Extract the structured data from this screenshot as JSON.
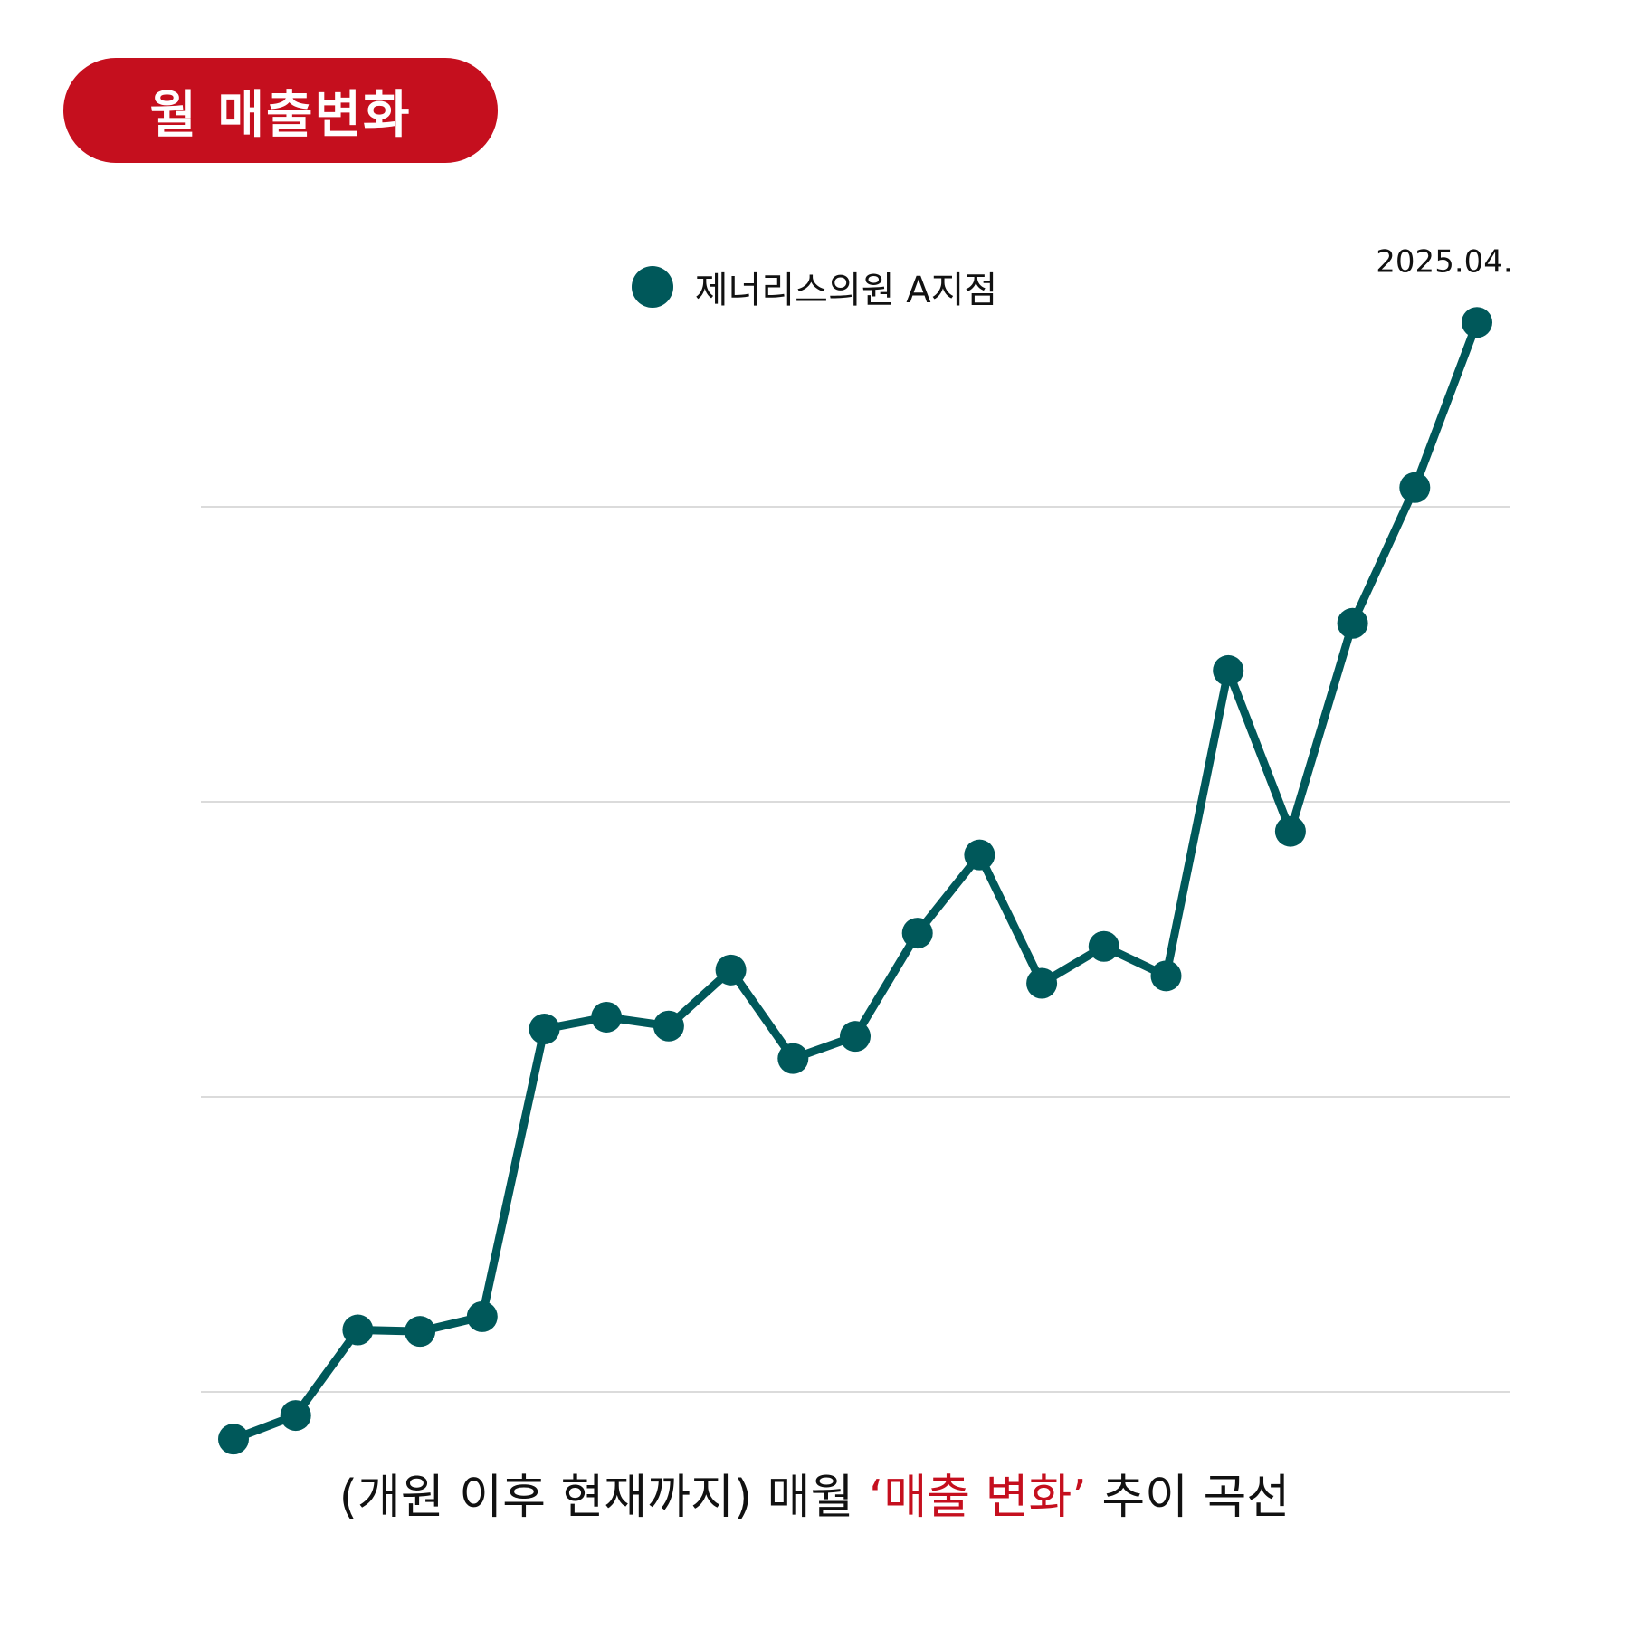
{
  "title_badge": {
    "text": "월 매출변화",
    "color": "#c50f1e"
  },
  "caption": {
    "prefix": "(개원 이후 현재까지) 매월 ",
    "highlight": "‘매출 변화’",
    "suffix": " 추이 곡선",
    "highlight_color": "#c50f1e"
  },
  "chart_data": {
    "type": "line",
    "x": [
      "",
      "",
      "",
      "",
      "",
      "",
      "",
      "",
      "",
      "",
      "",
      "",
      "",
      "",
      "",
      "",
      "",
      "",
      "",
      "",
      "2025.04."
    ],
    "series": [
      {
        "name": "제너리스의원 A지점",
        "color": "#00585a",
        "values": [
          -3.2,
          -1.6,
          4.2,
          4.1,
          5.1,
          24.6,
          25.4,
          24.8,
          28.6,
          22.6,
          24.1,
          31.1,
          36.4,
          27.7,
          30.2,
          28.2,
          48.9,
          38.0,
          52.1,
          61.3,
          72.5
        ]
      }
    ],
    "ylim": [
      0,
      60
    ],
    "yticks": [
      0,
      20,
      40,
      60
    ],
    "show_ytick_labels": false,
    "grid": true,
    "legend_position": "top-center",
    "last_point_label": "2025.04."
  }
}
